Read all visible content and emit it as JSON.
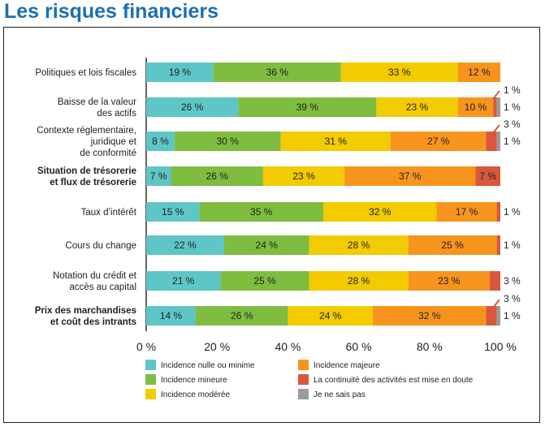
{
  "title": "Les risques financiers",
  "chart_data": {
    "type": "bar",
    "orientation": "horizontal",
    "stacked": true,
    "xlim": [
      0,
      100
    ],
    "x_ticks": [
      "0 %",
      "20 %",
      "40 %",
      "60 %",
      "80 %",
      "100 %"
    ],
    "categories": [
      {
        "lines": [
          "Politiques et lois fiscales"
        ],
        "bold": false
      },
      {
        "lines": [
          "Baisse de la valeur",
          "des actifs"
        ],
        "bold": false
      },
      {
        "lines": [
          "Contexte réglementaire,",
          "juridique et",
          "de conformité"
        ],
        "bold": false
      },
      {
        "lines": [
          "Situation de trésorerie",
          "et flux de trésorerie"
        ],
        "bold": true
      },
      {
        "lines": [
          "Taux d’intérêt"
        ],
        "bold": false
      },
      {
        "lines": [
          "Cours du change"
        ],
        "bold": false
      },
      {
        "lines": [
          "Notation du crédit et",
          "accès au capital"
        ],
        "bold": false
      },
      {
        "lines": [
          "Prix des marchandises",
          "et coût des intrants"
        ],
        "bold": true
      }
    ],
    "series": [
      {
        "name": "Incidence nulle ou minime",
        "color": "#5ec6c6",
        "values": [
          19,
          26,
          8,
          7,
          15,
          22,
          21,
          14
        ]
      },
      {
        "name": "Incidence mineure",
        "color": "#7ebd3f",
        "values": [
          36,
          39,
          30,
          26,
          35,
          24,
          25,
          26
        ]
      },
      {
        "name": "Incidence modérée",
        "color": "#f2cb00",
        "values": [
          33,
          23,
          31,
          23,
          32,
          28,
          28,
          24
        ]
      },
      {
        "name": "Incidence majeure",
        "color": "#f7941d",
        "values": [
          12,
          10,
          27,
          37,
          17,
          25,
          23,
          32
        ]
      },
      {
        "name": "La continuité des activités est mise en doute",
        "color": "#d9573a",
        "values": [
          0,
          1,
          3,
          7,
          1,
          1,
          3,
          3
        ]
      },
      {
        "name": "Je ne sais pas",
        "color": "#9b9b9b",
        "values": [
          0,
          1,
          1,
          0,
          0,
          0,
          0,
          1
        ]
      }
    ],
    "legend_position": "bottom"
  }
}
